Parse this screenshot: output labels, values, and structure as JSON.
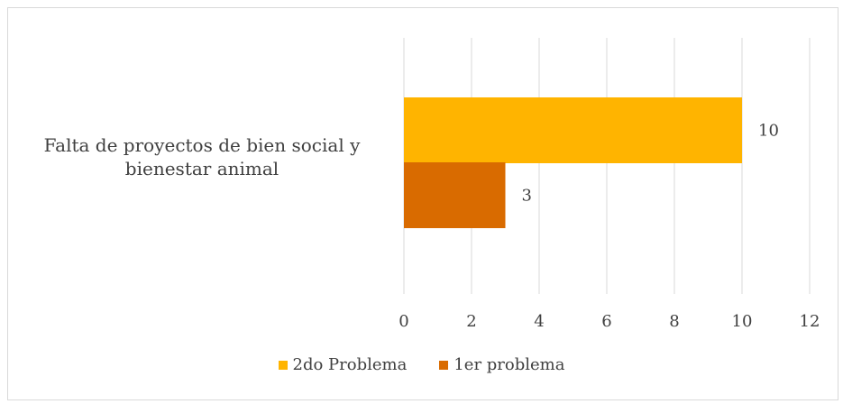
{
  "chart_data": {
    "type": "bar",
    "orientation": "horizontal",
    "categories": [
      "Falta de proyectos de bien social y bienestar animal"
    ],
    "series": [
      {
        "name": "2do Problema",
        "values": [
          10
        ],
        "color": "#ffb400"
      },
      {
        "name": "1er problema",
        "values": [
          3
        ],
        "color": "#d96b00"
      }
    ],
    "xlim": [
      0,
      12
    ],
    "xticks": [
      0,
      2,
      4,
      6,
      8,
      10,
      12
    ],
    "grid": "vertical",
    "legend_position": "bottom",
    "data_labels": true
  },
  "text_color": "#404040",
  "grid_color": "#d9d9d9"
}
